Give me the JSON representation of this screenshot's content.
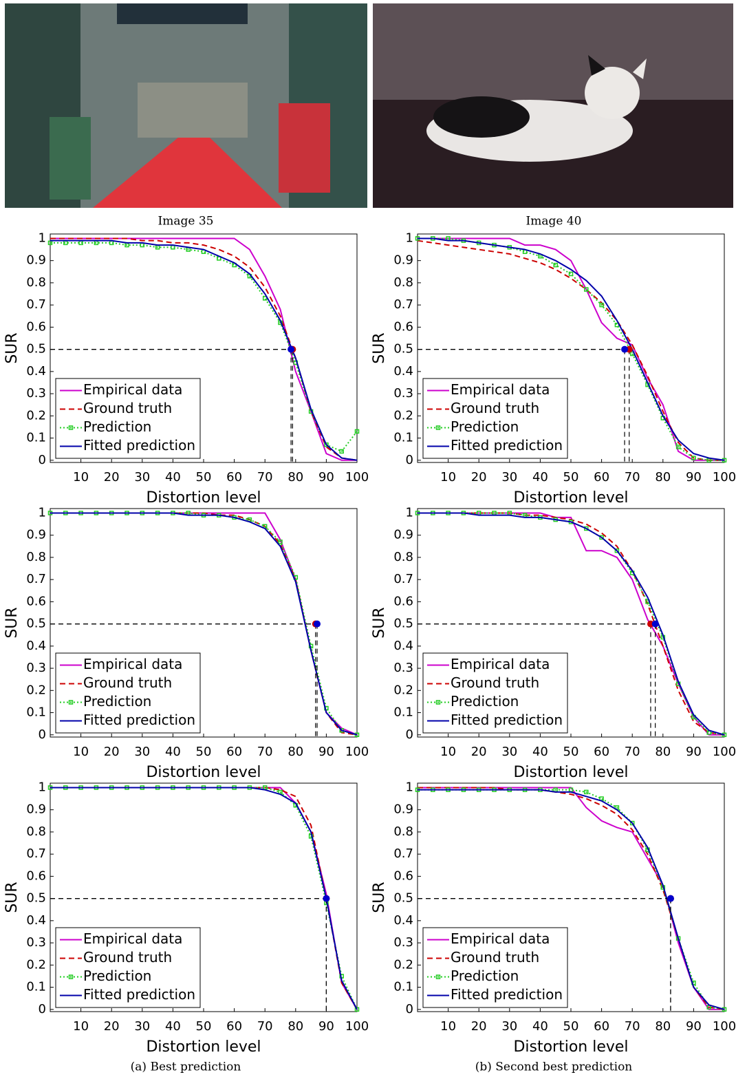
{
  "figure": {
    "image_captions": [
      "Image 35",
      "Image 40"
    ],
    "subcaptions": [
      "(a) Best prediction",
      "(b) Second best prediction"
    ]
  },
  "chart_data": [
    {
      "type": "line",
      "xlabel": "Distortion level",
      "ylabel": "SUR",
      "xlim": [
        0,
        100
      ],
      "ylim": [
        -0.01,
        1.02
      ],
      "xticks": [
        10,
        20,
        30,
        40,
        50,
        60,
        70,
        80,
        90,
        100
      ],
      "yticks": [
        0,
        0.1,
        0.2,
        0.3,
        0.4,
        0.5,
        0.6,
        0.7,
        0.8,
        0.9,
        1
      ],
      "legend": "lower left",
      "grid": false,
      "x": [
        0,
        5,
        10,
        15,
        20,
        25,
        30,
        35,
        40,
        45,
        50,
        55,
        60,
        65,
        70,
        75,
        80,
        85,
        90,
        95,
        100
      ],
      "series": [
        {
          "name": "Empirical data",
          "color": "#cc00cc",
          "linestyle": "solid",
          "values": [
            1,
            1,
            1,
            1,
            1,
            1,
            1,
            1,
            1,
            1,
            1,
            1,
            1,
            0.95,
            0.83,
            0.68,
            0.4,
            0.22,
            0.03,
            0,
            0
          ]
        },
        {
          "name": "Ground truth",
          "color": "#cc0000",
          "linestyle": "dashed",
          "values": [
            1,
            1,
            1,
            1,
            1,
            1,
            0.99,
            0.99,
            0.98,
            0.98,
            0.97,
            0.95,
            0.92,
            0.87,
            0.78,
            0.65,
            0.46,
            0.22,
            0.06,
            0.01,
            0
          ]
        },
        {
          "name": "Prediction",
          "color": "#22cc22",
          "linestyle": "dotted",
          "marker": "square",
          "values": [
            0.98,
            0.98,
            0.98,
            0.98,
            0.98,
            0.97,
            0.97,
            0.96,
            0.96,
            0.95,
            0.94,
            0.91,
            0.88,
            0.83,
            0.73,
            0.62,
            0.44,
            0.22,
            0.07,
            0.04,
            0.13
          ]
        },
        {
          "name": "Fitted prediction",
          "color": "#0000aa",
          "linestyle": "solid",
          "values": [
            0.99,
            0.99,
            0.99,
            0.99,
            0.99,
            0.98,
            0.98,
            0.97,
            0.97,
            0.96,
            0.95,
            0.92,
            0.89,
            0.84,
            0.75,
            0.63,
            0.46,
            0.23,
            0.07,
            0.01,
            0
          ]
        }
      ],
      "points": [
        {
          "x": 79,
          "y": 0.5,
          "color": "#cc0000"
        },
        {
          "x": 78.5,
          "y": 0.5,
          "color": "#0000cc"
        }
      ]
    },
    {
      "type": "line",
      "xlabel": "Distortion level",
      "ylabel": "SUR",
      "xlim": [
        0,
        100
      ],
      "ylim": [
        -0.01,
        1.02
      ],
      "xticks": [
        10,
        20,
        30,
        40,
        50,
        60,
        70,
        80,
        90,
        100
      ],
      "yticks": [
        0,
        0.1,
        0.2,
        0.3,
        0.4,
        0.5,
        0.6,
        0.7,
        0.8,
        0.9,
        1
      ],
      "legend": "lower left",
      "grid": false,
      "x": [
        0,
        5,
        10,
        15,
        20,
        25,
        30,
        35,
        40,
        45,
        50,
        55,
        60,
        65,
        70,
        75,
        80,
        85,
        90,
        95,
        100
      ],
      "series": [
        {
          "name": "Empirical data",
          "color": "#cc00cc",
          "linestyle": "solid",
          "values": [
            1,
            1,
            1,
            1,
            1,
            1,
            1,
            0.97,
            0.97,
            0.95,
            0.9,
            0.77,
            0.62,
            0.55,
            0.52,
            0.37,
            0.25,
            0.04,
            0,
            0,
            0
          ]
        },
        {
          "name": "Ground truth",
          "color": "#cc0000",
          "linestyle": "dashed",
          "values": [
            0.99,
            0.98,
            0.97,
            0.96,
            0.95,
            0.94,
            0.93,
            0.91,
            0.89,
            0.86,
            0.82,
            0.77,
            0.71,
            0.63,
            0.52,
            0.38,
            0.22,
            0.08,
            0.01,
            0,
            0
          ]
        },
        {
          "name": "Prediction",
          "color": "#22cc22",
          "linestyle": "dotted",
          "marker": "square",
          "values": [
            1,
            1,
            1,
            0.99,
            0.98,
            0.97,
            0.96,
            0.94,
            0.92,
            0.88,
            0.84,
            0.77,
            0.7,
            0.61,
            0.48,
            0.34,
            0.19,
            0.06,
            0.01,
            0,
            0
          ]
        },
        {
          "name": "Fitted prediction",
          "color": "#0000aa",
          "linestyle": "solid",
          "values": [
            1,
            1,
            0.99,
            0.99,
            0.98,
            0.97,
            0.96,
            0.95,
            0.93,
            0.9,
            0.86,
            0.81,
            0.74,
            0.63,
            0.5,
            0.35,
            0.2,
            0.09,
            0.03,
            0.01,
            0
          ]
        }
      ],
      "points": [
        {
          "x": 69,
          "y": 0.5,
          "color": "#cc0000"
        },
        {
          "x": 67.5,
          "y": 0.5,
          "color": "#0000cc"
        }
      ]
    },
    {
      "type": "line",
      "xlabel": "Distortion level",
      "ylabel": "SUR",
      "xlim": [
        0,
        100
      ],
      "ylim": [
        -0.01,
        1.02
      ],
      "xticks": [
        10,
        20,
        30,
        40,
        50,
        60,
        70,
        80,
        90,
        100
      ],
      "yticks": [
        0,
        0.1,
        0.2,
        0.3,
        0.4,
        0.5,
        0.6,
        0.7,
        0.8,
        0.9,
        1
      ],
      "legend": "lower left",
      "grid": false,
      "x": [
        0,
        5,
        10,
        15,
        20,
        25,
        30,
        35,
        40,
        45,
        50,
        55,
        60,
        65,
        70,
        75,
        80,
        85,
        90,
        95,
        100
      ],
      "series": [
        {
          "name": "Empirical data",
          "color": "#cc00cc",
          "linestyle": "solid",
          "values": [
            1,
            1,
            1,
            1,
            1,
            1,
            1,
            1,
            1,
            1,
            1,
            1,
            1,
            1,
            1,
            0.88,
            0.7,
            0.38,
            0.1,
            0.03,
            0
          ]
        },
        {
          "name": "Ground truth",
          "color": "#cc0000",
          "linestyle": "dashed",
          "values": [
            1,
            1,
            1,
            1,
            1,
            1,
            1,
            1,
            1,
            1,
            1,
            0.99,
            0.99,
            0.97,
            0.94,
            0.86,
            0.7,
            0.38,
            0.1,
            0.01,
            0
          ]
        },
        {
          "name": "Prediction",
          "color": "#22cc22",
          "linestyle": "dotted",
          "marker": "square",
          "values": [
            1,
            1,
            1,
            1,
            1,
            1,
            1,
            1,
            1,
            1,
            0.99,
            0.99,
            0.98,
            0.97,
            0.94,
            0.87,
            0.71,
            0.4,
            0.12,
            0.02,
            0
          ]
        },
        {
          "name": "Fitted prediction",
          "color": "#0000aa",
          "linestyle": "solid",
          "values": [
            1,
            1,
            1,
            1,
            1,
            1,
            1,
            1,
            1,
            0.99,
            0.99,
            0.99,
            0.98,
            0.96,
            0.93,
            0.85,
            0.69,
            0.38,
            0.1,
            0.02,
            0
          ]
        }
      ],
      "points": [
        {
          "x": 86.5,
          "y": 0.5,
          "color": "#cc0000"
        },
        {
          "x": 87,
          "y": 0.5,
          "color": "#0000cc"
        }
      ]
    },
    {
      "type": "line",
      "xlabel": "Distortion level",
      "ylabel": "SUR",
      "xlim": [
        0,
        100
      ],
      "ylim": [
        -0.01,
        1.02
      ],
      "xticks": [
        10,
        20,
        30,
        40,
        50,
        60,
        70,
        80,
        90,
        100
      ],
      "yticks": [
        0,
        0.1,
        0.2,
        0.3,
        0.4,
        0.5,
        0.6,
        0.7,
        0.8,
        0.9,
        1
      ],
      "legend": "lower left",
      "grid": false,
      "x": [
        0,
        5,
        10,
        15,
        20,
        25,
        30,
        35,
        40,
        45,
        50,
        55,
        60,
        65,
        70,
        75,
        80,
        85,
        90,
        95,
        100
      ],
      "series": [
        {
          "name": "Empirical data",
          "color": "#cc00cc",
          "linestyle": "solid",
          "values": [
            1,
            1,
            1,
            1,
            1,
            1,
            1,
            1,
            1,
            0.98,
            0.98,
            0.83,
            0.83,
            0.8,
            0.7,
            0.52,
            0.4,
            0.23,
            0.08,
            0,
            0
          ]
        },
        {
          "name": "Ground truth",
          "color": "#cc0000",
          "linestyle": "dashed",
          "values": [
            1,
            1,
            1,
            1,
            1,
            1,
            1,
            0.99,
            0.99,
            0.98,
            0.97,
            0.95,
            0.91,
            0.85,
            0.74,
            0.59,
            0.4,
            0.2,
            0.06,
            0.01,
            0
          ]
        },
        {
          "name": "Prediction",
          "color": "#22cc22",
          "linestyle": "dotted",
          "marker": "square",
          "values": [
            1,
            1,
            1,
            1,
            1,
            1,
            1,
            0.99,
            0.98,
            0.97,
            0.96,
            0.93,
            0.89,
            0.83,
            0.73,
            0.6,
            0.44,
            0.23,
            0.08,
            0.01,
            0
          ]
        },
        {
          "name": "Fitted prediction",
          "color": "#0000aa",
          "linestyle": "solid",
          "values": [
            1,
            1,
            1,
            1,
            0.99,
            0.99,
            0.99,
            0.98,
            0.98,
            0.97,
            0.96,
            0.93,
            0.89,
            0.83,
            0.74,
            0.62,
            0.45,
            0.24,
            0.09,
            0.02,
            0
          ]
        }
      ],
      "points": [
        {
          "x": 76,
          "y": 0.5,
          "color": "#cc0000"
        },
        {
          "x": 77.5,
          "y": 0.5,
          "color": "#0000cc"
        }
      ]
    },
    {
      "type": "line",
      "xlabel": "Distortion level",
      "ylabel": "SUR",
      "xlim": [
        0,
        100
      ],
      "ylim": [
        -0.01,
        1.02
      ],
      "xticks": [
        10,
        20,
        30,
        40,
        50,
        60,
        70,
        80,
        90,
        100
      ],
      "yticks": [
        0,
        0.1,
        0.2,
        0.3,
        0.4,
        0.5,
        0.6,
        0.7,
        0.8,
        0.9,
        1
      ],
      "legend": "lower left",
      "grid": false,
      "x": [
        0,
        5,
        10,
        15,
        20,
        25,
        30,
        35,
        40,
        45,
        50,
        55,
        60,
        65,
        70,
        75,
        80,
        85,
        90,
        95,
        100
      ],
      "series": [
        {
          "name": "Empirical data",
          "color": "#cc00cc",
          "linestyle": "solid",
          "values": [
            1,
            1,
            1,
            1,
            1,
            1,
            1,
            1,
            1,
            1,
            1,
            1,
            1,
            1,
            1,
            1,
            0.93,
            0.8,
            0.52,
            0.12,
            0
          ]
        },
        {
          "name": "Ground truth",
          "color": "#cc0000",
          "linestyle": "dashed",
          "values": [
            1,
            1,
            1,
            1,
            1,
            1,
            1,
            1,
            1,
            1,
            1,
            1,
            1,
            1,
            1,
            0.99,
            0.96,
            0.83,
            0.5,
            0.12,
            0
          ]
        },
        {
          "name": "Prediction",
          "color": "#22cc22",
          "linestyle": "dotted",
          "marker": "square",
          "values": [
            1,
            1,
            1,
            1,
            1,
            1,
            1,
            1,
            1,
            1,
            1,
            1,
            1,
            1,
            1,
            0.98,
            0.92,
            0.78,
            0.48,
            0.15,
            0
          ]
        },
        {
          "name": "Fitted prediction",
          "color": "#0000aa",
          "linestyle": "solid",
          "values": [
            1,
            1,
            1,
            1,
            1,
            1,
            1,
            1,
            1,
            1,
            1,
            1,
            1,
            1,
            0.99,
            0.97,
            0.93,
            0.8,
            0.5,
            0.13,
            0
          ]
        }
      ],
      "points": [
        {
          "x": 90,
          "y": 0.5,
          "color": "#cc0000"
        },
        {
          "x": 90,
          "y": 0.5,
          "color": "#0000cc"
        }
      ]
    },
    {
      "type": "line",
      "xlabel": "Distortion level",
      "ylabel": "SUR",
      "xlim": [
        0,
        100
      ],
      "ylim": [
        -0.01,
        1.02
      ],
      "xticks": [
        10,
        20,
        30,
        40,
        50,
        60,
        70,
        80,
        90,
        100
      ],
      "yticks": [
        0,
        0.1,
        0.2,
        0.3,
        0.4,
        0.5,
        0.6,
        0.7,
        0.8,
        0.9,
        1
      ],
      "legend": "lower left",
      "grid": false,
      "x": [
        0,
        5,
        10,
        15,
        20,
        25,
        30,
        35,
        40,
        45,
        50,
        55,
        60,
        65,
        70,
        75,
        80,
        85,
        90,
        95,
        100
      ],
      "series": [
        {
          "name": "Empirical data",
          "color": "#cc00cc",
          "linestyle": "solid",
          "values": [
            1,
            1,
            1,
            1,
            1,
            1,
            1,
            1,
            1,
            1,
            1,
            0.91,
            0.85,
            0.82,
            0.8,
            0.68,
            0.56,
            0.3,
            0.1,
            0,
            0
          ]
        },
        {
          "name": "Ground truth",
          "color": "#cc0000",
          "linestyle": "dashed",
          "values": [
            1,
            1,
            1,
            1,
            1,
            1,
            0.99,
            0.99,
            0.99,
            0.98,
            0.97,
            0.95,
            0.92,
            0.88,
            0.81,
            0.7,
            0.54,
            0.32,
            0.1,
            0.01,
            0
          ]
        },
        {
          "name": "Prediction",
          "color": "#22cc22",
          "linestyle": "dotted",
          "marker": "square",
          "values": [
            0.99,
            0.99,
            0.99,
            0.99,
            0.99,
            0.99,
            0.99,
            0.99,
            0.99,
            0.99,
            0.99,
            0.98,
            0.95,
            0.91,
            0.84,
            0.72,
            0.55,
            0.32,
            0.12,
            0.01,
            0
          ]
        },
        {
          "name": "Fitted prediction",
          "color": "#0000aa",
          "linestyle": "solid",
          "values": [
            0.99,
            0.99,
            0.99,
            0.99,
            0.99,
            0.99,
            0.99,
            0.99,
            0.99,
            0.98,
            0.98,
            0.96,
            0.94,
            0.9,
            0.84,
            0.73,
            0.56,
            0.32,
            0.1,
            0.02,
            0
          ]
        }
      ],
      "points": [
        {
          "x": 82.5,
          "y": 0.5,
          "color": "#cc0000"
        },
        {
          "x": 82.5,
          "y": 0.5,
          "color": "#0000cc"
        }
      ]
    }
  ]
}
